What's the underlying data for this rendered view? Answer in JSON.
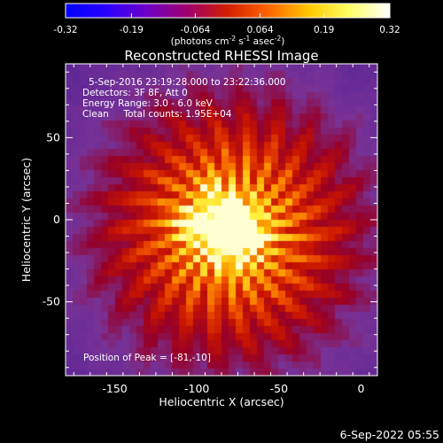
{
  "colorbar": {
    "ticks": [
      "-0.32",
      "-0.19",
      "-0.064",
      "0.064",
      "0.19",
      "0.32"
    ],
    "tick_values": [
      -0.32,
      -0.19,
      -0.064,
      0.064,
      0.19,
      0.32
    ],
    "range": [
      -0.32,
      0.32
    ],
    "unit_main": "(photons cm",
    "unit_sup1": "-2",
    "unit_mid1": " s",
    "unit_sup2": "-1",
    "unit_mid2": " asec",
    "unit_sup3": "-2",
    "unit_end": ")",
    "colors": [
      "#0000ff",
      "#2a00ff",
      "#6e00c8",
      "#a0006e",
      "#d21e00",
      "#ff6400",
      "#ffc800",
      "#ffff64",
      "#ffffff"
    ]
  },
  "title": "Reconstructed RHESSI Image",
  "info": {
    "line1": "5-Sep-2016 23:19:28.000 to 23:22:36.000",
    "line2": "Detectors: 3F 8F, Att 0",
    "line3": "Energy Range: 3.0 - 6.0 keV",
    "line4": "Clean     Total counts: 1.95E+04"
  },
  "peak": "Position of Peak = [-81,-10]",
  "axes": {
    "xlabel": "Heliocentric X (arcsec)",
    "ylabel": "Heliocentric Y (arcsec)",
    "xticks": [
      "-150",
      "-100",
      "-50",
      "0"
    ],
    "xtick_values": [
      -150,
      -100,
      -50,
      0
    ],
    "yticks": [
      "50",
      "0",
      "-50"
    ],
    "ytick_values": [
      50,
      0,
      -50
    ],
    "xlim": [
      -180,
      10
    ],
    "ylim": [
      -95,
      95
    ]
  },
  "timestamp": "6-Sep-2022 05:55",
  "colors": {
    "background": "#000000",
    "plot_background": "#7a2aa6",
    "peak": "#ffff88"
  }
}
